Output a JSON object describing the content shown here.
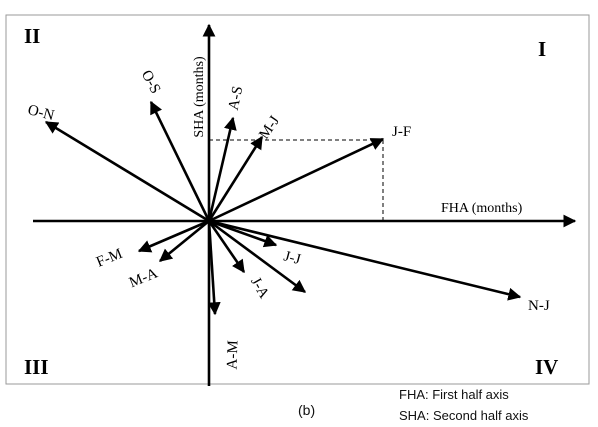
{
  "quadrants": {
    "q1": "I",
    "q2": "II",
    "q3": "III",
    "q4": "IV"
  },
  "axes": {
    "x_label": "FHA (months)",
    "y_label": "SHA (months)"
  },
  "vectors": [
    {
      "name": "J-F"
    },
    {
      "name": "O-N"
    },
    {
      "name": "O-S"
    },
    {
      "name": "A-S"
    },
    {
      "name": "M-J"
    },
    {
      "name": "F-M"
    },
    {
      "name": "M-A"
    },
    {
      "name": "J-A"
    },
    {
      "name": "A-M"
    },
    {
      "name": "J-J"
    },
    {
      "name": "N-J"
    }
  ],
  "footer": {
    "sublabel": "(b)",
    "note_fha": "FHA: First half axis",
    "note_sha": "SHA: Second half axis"
  }
}
